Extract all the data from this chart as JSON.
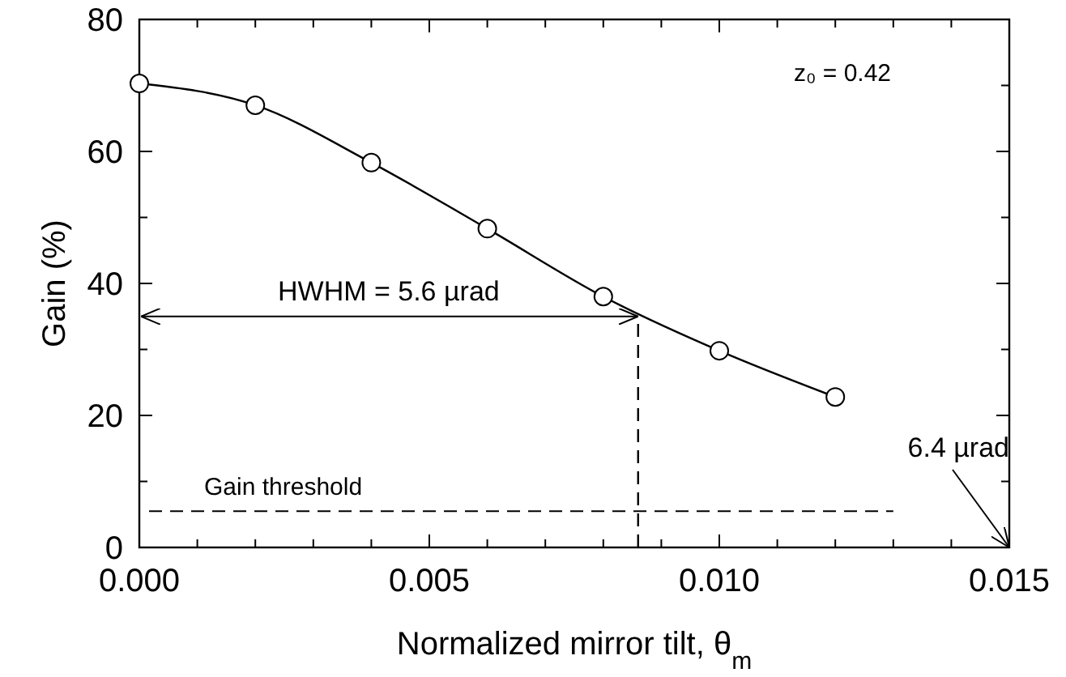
{
  "chart_data": {
    "type": "line",
    "xlabel": "Normalized mirror tilt, θ$_{m}$",
    "ylabel": "Gain (%)",
    "x": [
      0,
      0.002,
      0.004,
      0.006,
      0.008,
      0.01,
      0.012
    ],
    "series": [
      {
        "color": "#000000",
        "marker": "circle",
        "line_style": "solid",
        "values": [
          70.3,
          67,
          58.3,
          48.3,
          38,
          29.8,
          22.8
        ]
      },
      {
        "color": "#000000",
        "marker": "none",
        "line_style": "dashed",
        "x": [
          0.0086,
          0.0086
        ],
        "values": [
          0,
          35
        ]
      }
    ],
    "ref_lines": [
      {
        "axis": "y",
        "value": 5.5,
        "label": "Gain threshold",
        "color": "#000000",
        "line_style": "dashed"
      }
    ],
    "annotations": [
      "HWHM = 5.6 µrad",
      "6.4 µrad",
      "z₀ = 0.42"
    ],
    "xlim": [
      0,
      0.015
    ],
    "ylim": [
      0,
      80
    ],
    "xticks": [
      {
        "value": 0,
        "label": "0.000"
      },
      {
        "value": 0.001,
        "label": null
      },
      {
        "value": 0.002,
        "label": null
      },
      {
        "value": 0.003,
        "label": null
      },
      {
        "value": 0.004,
        "label": null
      },
      {
        "value": 0.005,
        "label": "0.005"
      },
      {
        "value": 0.006,
        "label": null
      },
      {
        "value": 0.007,
        "label": null
      },
      {
        "value": 0.008,
        "label": null
      },
      {
        "value": 0.009,
        "label": null
      },
      {
        "value": 0.01,
        "label": "0.010"
      },
      {
        "value": 0.011,
        "label": null
      },
      {
        "value": 0.012,
        "label": null
      },
      {
        "value": 0.013,
        "label": null
      },
      {
        "value": 0.014,
        "label": null
      },
      {
        "value": 0.015,
        "label": "0.015"
      }
    ],
    "yticks": [
      0,
      {
        "value": 10,
        "label": null
      },
      20,
      {
        "value": 30,
        "label": null
      },
      40,
      {
        "value": 50,
        "label": null
      },
      60,
      {
        "value": 70,
        "label": null
      },
      80
    ],
    "grid": false
  }
}
